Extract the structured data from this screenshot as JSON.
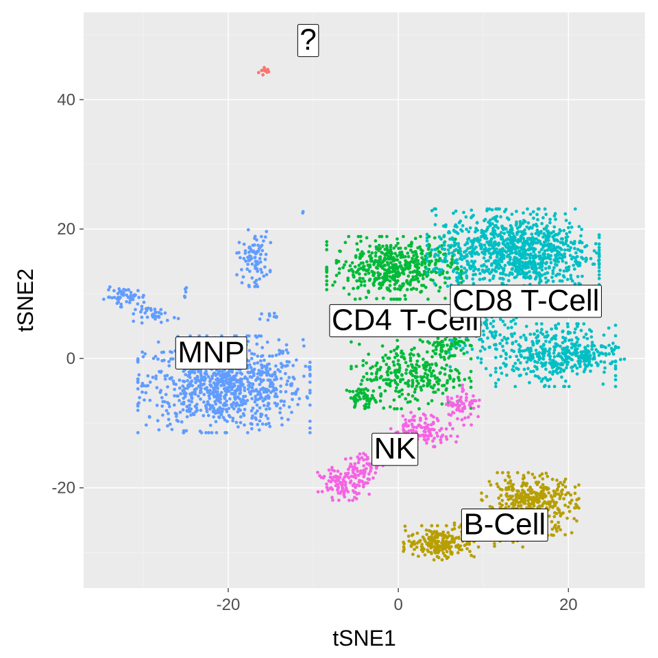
{
  "chart_data": {
    "type": "scatter",
    "title": "",
    "xlabel": "tSNE1",
    "ylabel": "tSNE2",
    "xlim": [
      -37,
      29
    ],
    "ylim": [
      -35.5,
      53.5
    ],
    "x_ticks": [
      -20,
      0,
      20
    ],
    "y_ticks": [
      -20,
      0,
      20,
      40
    ],
    "x_tick_labels": [
      "-20",
      "0",
      "20"
    ],
    "y_tick_labels": [
      "-20",
      "0",
      "20",
      "40"
    ],
    "grid": true,
    "legend": "none",
    "colors": {
      "panel_background": "#ebebeb",
      "grid": "#ffffff"
    },
    "series": [
      {
        "name": "?",
        "color": "#f8766d",
        "label_position": [
          -10.6,
          49.3
        ],
        "blobs": [
          {
            "cx": -15.6,
            "cy": 44.4,
            "sx": 0.4,
            "sy": 0.4,
            "n": 12
          }
        ]
      },
      {
        "name": "MNP",
        "color": "#619cff",
        "label_position": [
          -22.0,
          1.0
        ],
        "blobs": [
          {
            "cx": -20.5,
            "cy": -4.0,
            "sx": 4.6,
            "sy": 3.4,
            "n": 900
          },
          {
            "cx": -17.0,
            "cy": 15.5,
            "sx": 0.9,
            "sy": 2.0,
            "n": 90
          },
          {
            "cx": -32.0,
            "cy": 9.5,
            "sx": 1.2,
            "sy": 0.7,
            "n": 50
          },
          {
            "cx": -28.5,
            "cy": 6.8,
            "sx": 1.2,
            "sy": 0.6,
            "n": 35
          },
          {
            "cx": -15.2,
            "cy": 6.6,
            "sx": 0.5,
            "sy": 0.3,
            "n": 10
          },
          {
            "cx": -25.0,
            "cy": 10.5,
            "sx": 0.1,
            "sy": 0.5,
            "n": 5
          },
          {
            "cx": -11.2,
            "cy": 22.6,
            "sx": 0.1,
            "sy": 0.1,
            "n": 2
          }
        ]
      },
      {
        "name": "CD4 T-Cell",
        "color": "#00ba38",
        "label_position": [
          0.8,
          6.0
        ],
        "blobs": [
          {
            "cx": -0.5,
            "cy": 14.0,
            "sx": 3.6,
            "sy": 2.2,
            "n": 520
          },
          {
            "cx": 1.5,
            "cy": -2.5,
            "sx": 3.2,
            "sy": 2.4,
            "n": 280
          },
          {
            "cx": 5.5,
            "cy": 2.0,
            "sx": 1.4,
            "sy": 1.2,
            "n": 70
          },
          {
            "cx": -4.3,
            "cy": -6.0,
            "sx": 0.8,
            "sy": 0.7,
            "n": 40
          }
        ]
      },
      {
        "name": "CD8 T-Cell",
        "color": "#00bfc4",
        "label_position": [
          15.0,
          9.0
        ],
        "blobs": [
          {
            "cx": 13.5,
            "cy": 16.5,
            "sx": 4.6,
            "sy": 3.0,
            "n": 1000
          },
          {
            "cx": 18.5,
            "cy": 0.5,
            "sx": 3.2,
            "sy": 2.2,
            "n": 380
          },
          {
            "cx": 10.0,
            "cy": 4.0,
            "sx": 2.0,
            "sy": 3.0,
            "n": 120
          },
          {
            "cx": 23.5,
            "cy": 0.5,
            "sx": 1.4,
            "sy": 0.9,
            "n": 45
          }
        ]
      },
      {
        "name": "NK",
        "color": "#f564e3",
        "label_position": [
          -0.4,
          -13.9
        ],
        "blobs": [
          {
            "cx": -6.5,
            "cy": -19.3,
            "sx": 1.4,
            "sy": 1.2,
            "n": 110
          },
          {
            "cx": -4.0,
            "cy": -17.0,
            "sx": 1.0,
            "sy": 1.2,
            "n": 60
          },
          {
            "cx": 3.0,
            "cy": -11.0,
            "sx": 1.8,
            "sy": 1.2,
            "n": 120
          },
          {
            "cx": 7.5,
            "cy": -7.0,
            "sx": 1.0,
            "sy": 1.5,
            "n": 60
          }
        ]
      },
      {
        "name": "B-Cell",
        "color": "#b79f00",
        "label_position": [
          12.5,
          -25.6
        ],
        "blobs": [
          {
            "cx": 15.5,
            "cy": -22.5,
            "sx": 2.6,
            "sy": 2.2,
            "n": 400
          },
          {
            "cx": 5.0,
            "cy": -28.5,
            "sx": 2.0,
            "sy": 1.2,
            "n": 200
          },
          {
            "cx": 11.0,
            "cy": -26.5,
            "sx": 2.0,
            "sy": 1.2,
            "n": 120
          }
        ]
      }
    ]
  }
}
